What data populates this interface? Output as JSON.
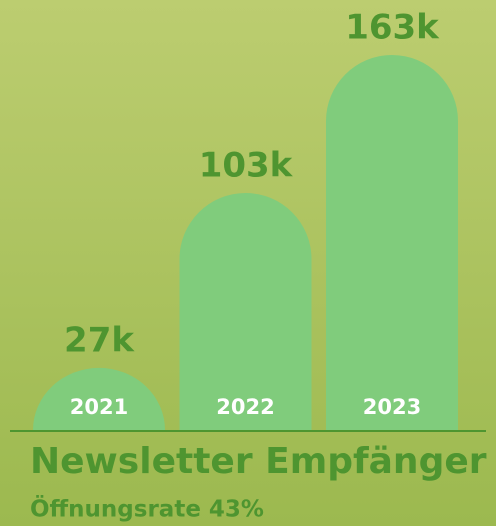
{
  "chart_data": {
    "type": "bar",
    "title": "Newsletter Empfänger",
    "subtitle": "Öffnungsrate 43%",
    "categories": [
      "2021",
      "2022",
      "2023"
    ],
    "values": [
      27000,
      103000,
      163000
    ],
    "value_labels": [
      "27k",
      "103k",
      "163k"
    ],
    "color": "#80cc7c"
  }
}
